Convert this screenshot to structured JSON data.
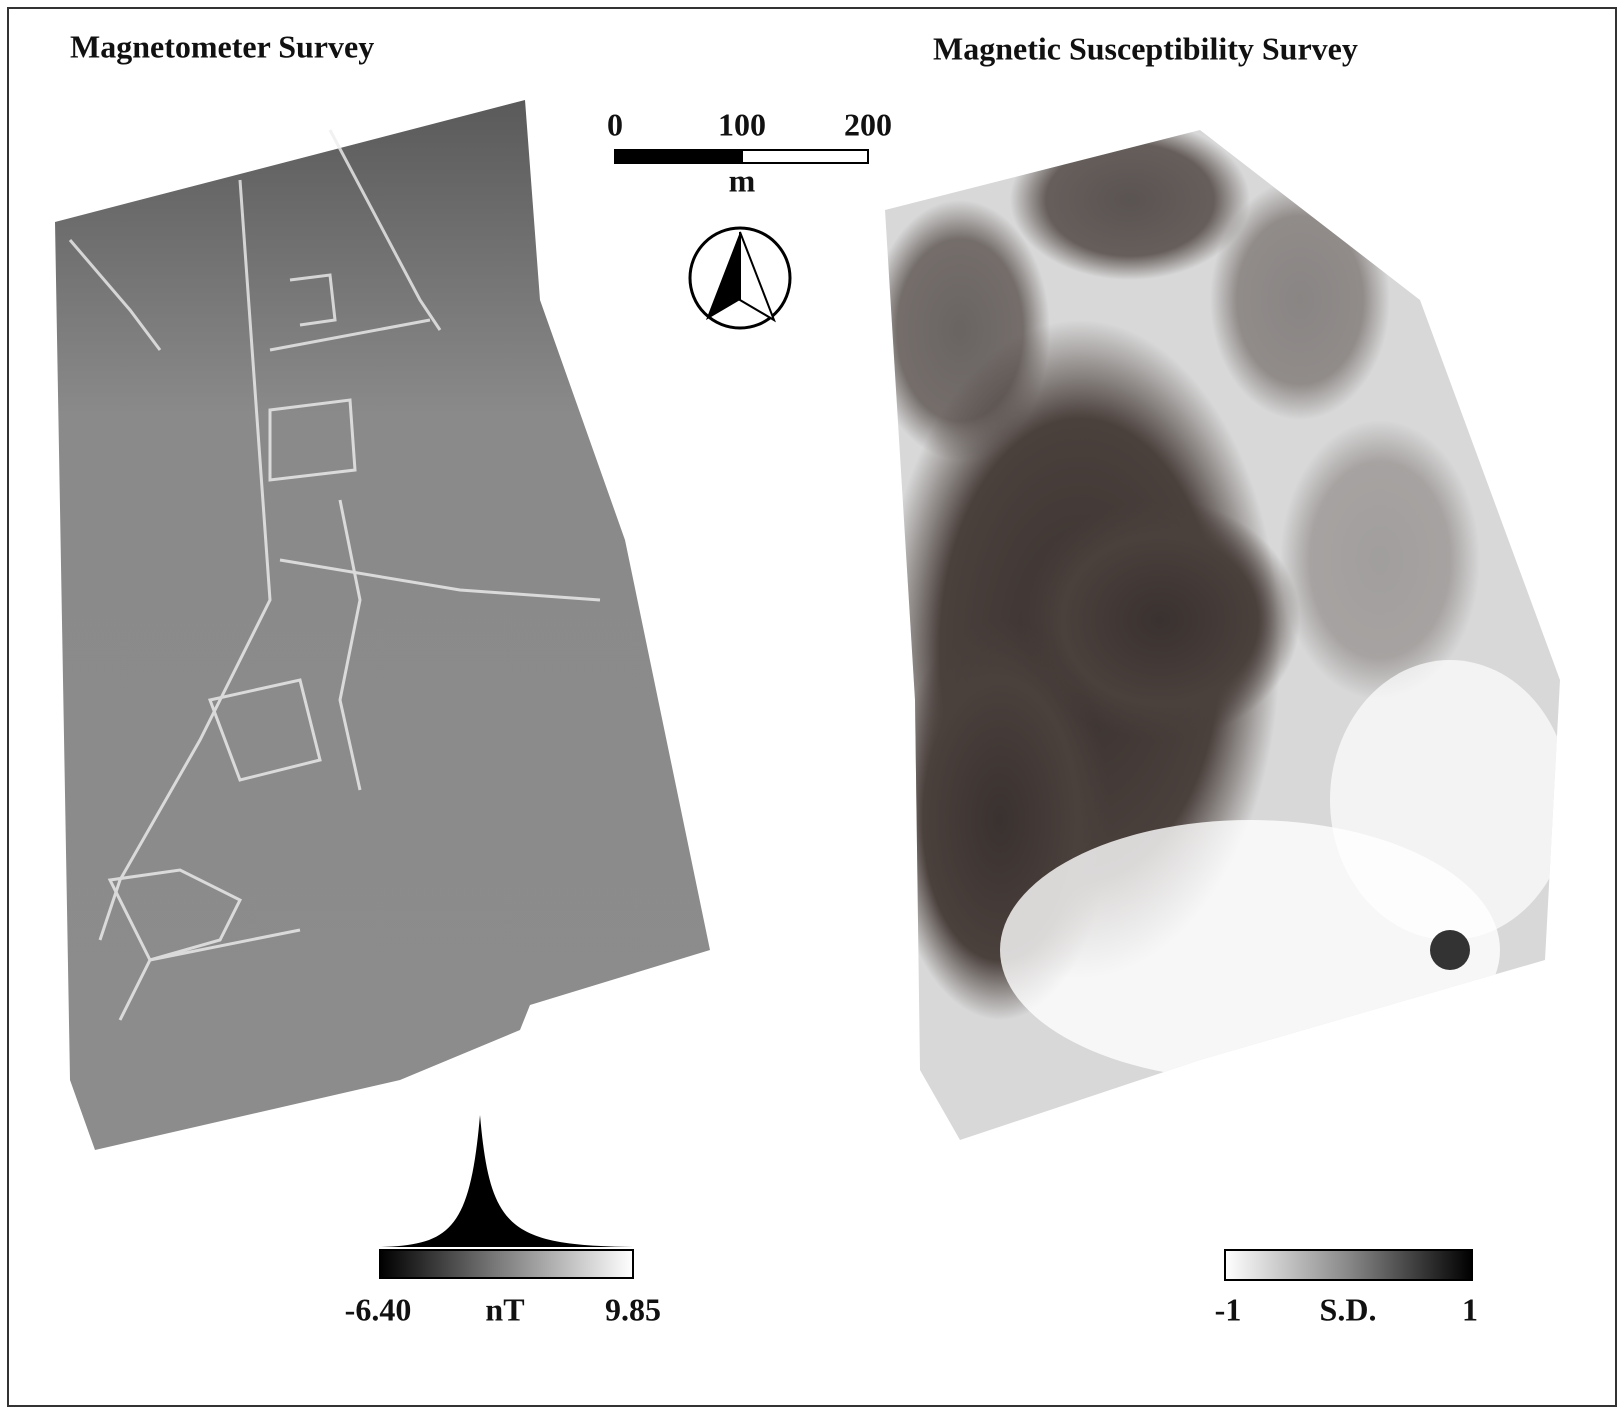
{
  "panels": [
    {
      "title": "Magnetometer Survey",
      "legend": {
        "min": "-6.40",
        "unit": "nT",
        "max": "9.85"
      }
    },
    {
      "title": "Magnetic Susceptibility Survey",
      "legend": {
        "min": "-1",
        "unit": "S.D.",
        "max": "1"
      }
    }
  ],
  "scale_bar": {
    "labels": [
      "0",
      "100",
      "200"
    ],
    "unit": "m"
  }
}
